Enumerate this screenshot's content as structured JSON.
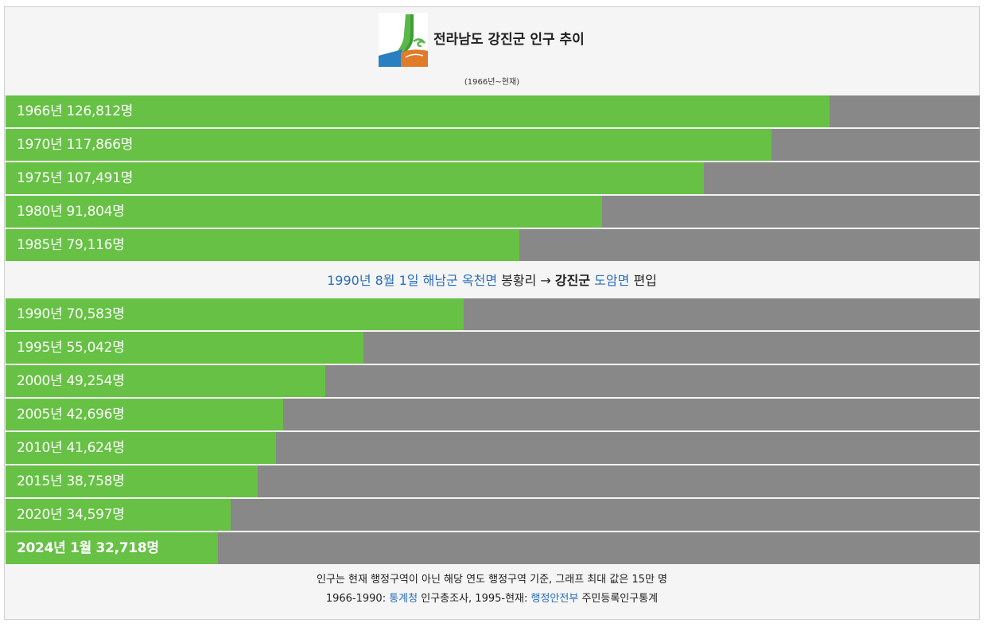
{
  "header": {
    "title": "전라남도 강진군 인구 추이",
    "subtitle": "(1966년~현재)"
  },
  "colors": {
    "bar": "#66c144",
    "track": "#888888",
    "link": "#2a6ebd"
  },
  "chart_data": {
    "type": "bar",
    "orientation": "horizontal",
    "max": 150000,
    "categories": [
      "1966년",
      "1970년",
      "1975년",
      "1980년",
      "1985년",
      "1990년",
      "1995년",
      "2000년",
      "2005년",
      "2010년",
      "2015년",
      "2020년",
      "2024년 1월"
    ],
    "values": [
      126812,
      117866,
      107491,
      91804,
      79116,
      70583,
      55042,
      49254,
      42696,
      41624,
      38758,
      34597,
      32718
    ],
    "labels": [
      "1966년 126,812명",
      "1970년 117,866명",
      "1975년 107,491명",
      "1980년 91,804명",
      "1985년 79,116명",
      "1990년 70,583명",
      "1995년 55,042명",
      "2000년 49,254명",
      "2005년 42,696명",
      "2010년 41,624명",
      "2015년 38,758명",
      "2020년 34,597명",
      "2024년 1월 32,718명"
    ]
  },
  "note": {
    "date": "1990년 8월 1일",
    "from_county": "해남군",
    "from_town": "옥천면",
    "village": "봉황리",
    "arrow": "→",
    "to_county": "강진군",
    "to_town": "도암면",
    "action": "편입"
  },
  "footer": {
    "line1": "인구는 현재 행정구역이 아닌 해당 연도 행정구역 기준, 그래프 최대 값은 15만 명",
    "line2_prefix": "1966-1990: ",
    "source1": "통계청",
    "line2_mid": " 인구총조사, 1995-현재: ",
    "source2": "행정안전부",
    "line2_suffix": " 주민등록인구통계"
  }
}
